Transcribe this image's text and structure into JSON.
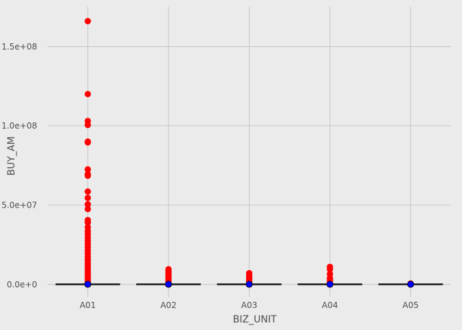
{
  "chart_data": {
    "type": "scatter",
    "xlabel": "BIZ_UNIT",
    "ylabel": "BUY_AM",
    "categories": [
      "A01",
      "A02",
      "A03",
      "A04",
      "A05"
    ],
    "ylim": [
      -8000000.0,
      175000000.0
    ],
    "yticks": [
      0,
      50000000,
      100000000,
      150000000
    ],
    "ytick_labels": [
      "0.0e+0",
      "5.0e+07",
      "1.0e+08",
      "1.5e+08"
    ],
    "grid": true,
    "legend": "none",
    "colors": {
      "background": "#ebebeb",
      "grid": "#c8c8c8",
      "outlier": "#ff0000",
      "median_point": "#0000ff",
      "median_line": "#222222"
    },
    "outliers": [
      {
        "category": "A01",
        "values": [
          166000000,
          120000000,
          103000000,
          100500000,
          90000000,
          89500000,
          72500000,
          69500000,
          68500000,
          58500000,
          54500000,
          50500000,
          47500000,
          40500000,
          39000000,
          36000000,
          33500000,
          31500000,
          29500000,
          27500000,
          25500000,
          23500000,
          21500000,
          19500000,
          17500000,
          15500000,
          13500000,
          12000000,
          10500000,
          9000000,
          7500000,
          6000000,
          4500000,
          3000000,
          1500000
        ]
      },
      {
        "category": "A02",
        "values": [
          9500000,
          8500000,
          7500000,
          6500000,
          5500000,
          4500000,
          3500000,
          2500000,
          1500000
        ]
      },
      {
        "category": "A03",
        "values": [
          7000000,
          6000000,
          5000000,
          4000000,
          3000000,
          2000000,
          1000000
        ]
      },
      {
        "category": "A04",
        "values": [
          11000000,
          9500000,
          6500000,
          4000000,
          3000000,
          2000000,
          1000000
        ]
      },
      {
        "category": "A05",
        "values": [
          500000
        ]
      }
    ],
    "medians": [
      {
        "category": "A01",
        "value": 0
      },
      {
        "category": "A02",
        "value": 0
      },
      {
        "category": "A03",
        "value": 0
      },
      {
        "category": "A04",
        "value": 0
      },
      {
        "category": "A05",
        "value": 0
      }
    ]
  }
}
